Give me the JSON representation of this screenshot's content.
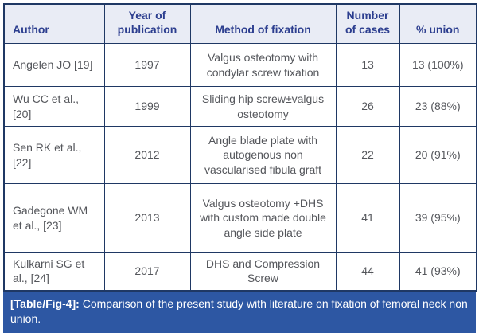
{
  "table": {
    "columns": [
      "Author",
      "Year of publication",
      "Method of fixation",
      "Number of cases",
      "% union"
    ],
    "rows": [
      {
        "author": "Angelen JO [19]",
        "year": "1997",
        "method": "Valgus osteotomy with condylar screw fixation",
        "cases": "13",
        "union": "13 (100%)"
      },
      {
        "author": "Wu CC et al., [20]",
        "year": "1999",
        "method": "Sliding hip screw±valgus osteotomy",
        "cases": "26",
        "union": "23 (88%)"
      },
      {
        "author": "Sen RK et al., [22]",
        "year": "2012",
        "method": "Angle blade plate with autogenous non vascularised fibula graft",
        "cases": "22",
        "union": "20 (91%)"
      },
      {
        "author": "Gadegone WM et al., [23]",
        "year": "2013",
        "method": "Valgus osteotomy +DHS with custom made double angle side plate",
        "cases": "41",
        "union": "39 (95%)"
      },
      {
        "author": "Kulkarni SG et al., [24]",
        "year": "2017",
        "method": "DHS and Compression Screw",
        "cases": "44",
        "union": "41 (93%)"
      }
    ]
  },
  "caption": {
    "label": "[Table/Fig-4]:",
    "text": "Comparison of the present study with literature on fixation of femoral neck non union."
  },
  "colors": {
    "border": "#1f3864",
    "header_bg": "#e9ecf5",
    "header_text": "#2c3e8f",
    "body_text": "#54565b",
    "caption_bg": "#2d57a3",
    "caption_text": "#ffffff"
  }
}
